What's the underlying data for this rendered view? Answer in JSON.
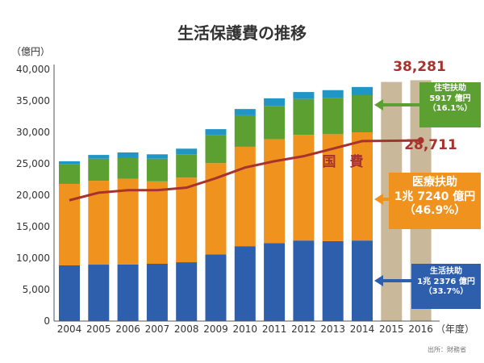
{
  "chart_data": {
    "type": "bar",
    "stacked": true,
    "title": "生活保護費の推移",
    "ylabel": "（億円）",
    "xlabel": "（年度）",
    "ylim": [
      0,
      40000
    ],
    "yticks": [
      "0",
      "5,000",
      "10,000",
      "15,000",
      "20,000",
      "25,000",
      "30,000",
      "35,000",
      "40,000"
    ],
    "categories": [
      "2004",
      "2005",
      "2006",
      "2007",
      "2008",
      "2009",
      "2010",
      "2011",
      "2012",
      "2013",
      "2014",
      "2015",
      "2016"
    ],
    "series": [
      {
        "key": "seikatsu",
        "color": "#2e5fac",
        "values": [
          8850,
          8970,
          9000,
          9100,
          9350,
          10600,
          11900,
          12400,
          12800,
          12700,
          12800,
          null,
          null
        ]
      },
      {
        "key": "iryo",
        "color": "#f0921e",
        "values": [
          12950,
          13330,
          13600,
          13100,
          13450,
          14500,
          15800,
          16500,
          16800,
          17000,
          17200,
          null,
          null
        ]
      },
      {
        "key": "jutaku",
        "color": "#5da032",
        "values": [
          3100,
          3500,
          3300,
          3600,
          3700,
          4500,
          5000,
          5300,
          5700,
          5800,
          5900,
          null,
          null
        ]
      },
      {
        "key": "other",
        "color": "#2196c4",
        "values": [
          500,
          600,
          900,
          700,
          900,
          900,
          1000,
          1200,
          1100,
          1200,
          1300,
          null,
          null
        ]
      },
      {
        "key": "total-estimate",
        "color": "#c9b99a",
        "values": [
          null,
          null,
          null,
          null,
          null,
          null,
          null,
          null,
          null,
          null,
          null,
          38000,
          38281
        ]
      }
    ],
    "line": {
      "name": "国　費",
      "color": "#a8322d",
      "values": [
        19200,
        20400,
        20800,
        20800,
        21200,
        22700,
        24400,
        25400,
        26200,
        27400,
        28600,
        null,
        28711
      ]
    },
    "annotations": {
      "total_2016": "38,281",
      "kokuhi_2016": "28,711",
      "source": "出所：財務省"
    },
    "callouts": [
      {
        "title": "住宅扶助",
        "amount": "5917 億円",
        "share": "（16.1%）",
        "color": "#5da032"
      },
      {
        "title": "医療扶助",
        "amount": "1兆 7240 億円",
        "share": "（46.9%）",
        "color": "#f0921e"
      },
      {
        "title": "生活扶助",
        "amount": "1兆 2376 億円",
        "share": "（33.7%）",
        "color": "#2e5fac"
      }
    ]
  }
}
